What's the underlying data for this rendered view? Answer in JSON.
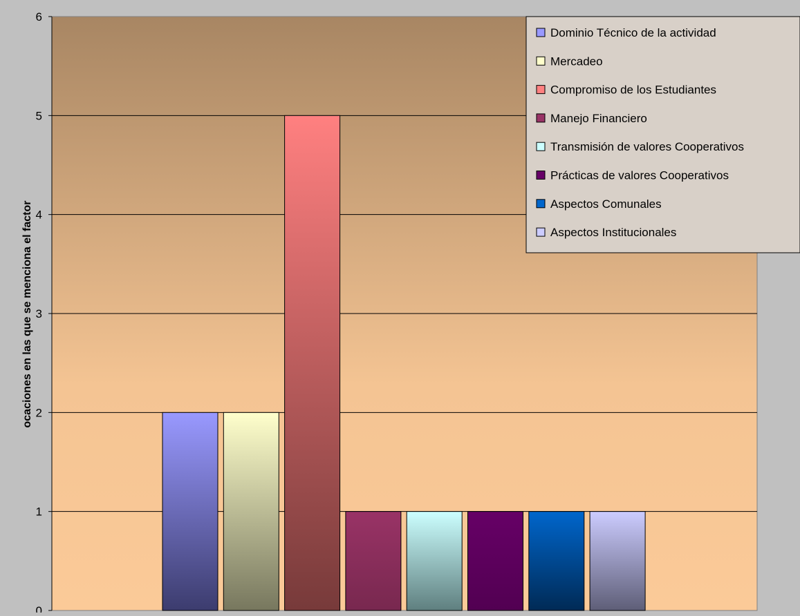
{
  "chart_data": {
    "type": "bar",
    "title": "",
    "xlabel": "",
    "ylabel": "ocaciones en las que se menciona el factor",
    "ylim": [
      0,
      6
    ],
    "yticks": [
      "0",
      "1",
      "2",
      "3",
      "4",
      "5",
      "6"
    ],
    "grid": true,
    "legend_position": "top-right",
    "series": [
      {
        "name": "Dominio Técnico de la actividad",
        "value": 2,
        "color_top": "#9999ff",
        "color_bottom": "#3c3c6e"
      },
      {
        "name": "Mercadeo",
        "value": 2,
        "color_top": "#ffffcc",
        "color_bottom": "#77775e"
      },
      {
        "name": "Compromiso de los Estudiantes",
        "value": 5,
        "color_top": "#ff8080",
        "color_bottom": "#773a3a"
      },
      {
        "name": "Manejo Financiero",
        "value": 1,
        "color_top": "#993366",
        "color_bottom": "#78284f"
      },
      {
        "name": "Transmisión de valores Cooperativos",
        "value": 1,
        "color_top": "#ccffff",
        "color_bottom": "#5f7f7f"
      },
      {
        "name": "Prácticas de valores Cooperativos",
        "value": 1,
        "color_top": "#660066",
        "color_bottom": "#520052"
      },
      {
        "name": "Aspectos Comunales",
        "value": 1,
        "color_top": "#0066cc",
        "color_bottom": "#002a55"
      },
      {
        "name": "Aspectos Institucionales",
        "value": 1,
        "color_top": "#ccccff",
        "color_bottom": "#5e5e77"
      }
    ],
    "colors": {
      "plot_top": "#a88663",
      "plot_bottom": "#fbca98",
      "legend_bg": "#d8d0c8",
      "outer_bg": "#c0c0c0"
    }
  }
}
